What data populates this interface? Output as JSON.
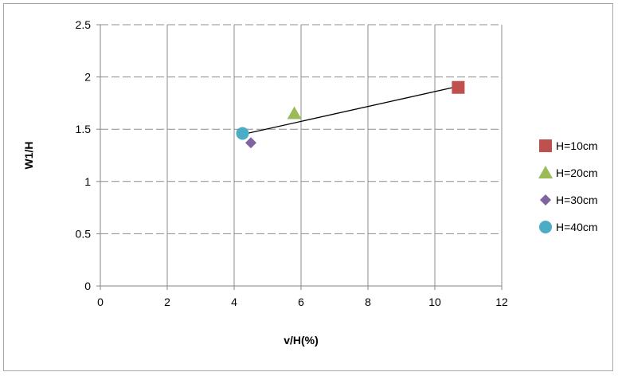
{
  "chart_data": {
    "type": "scatter",
    "title": "",
    "xlabel": "v/H(%)",
    "ylabel": "W1/H",
    "xlim": [
      0,
      12
    ],
    "ylim": [
      0,
      2.5
    ],
    "x_ticks": [
      "0",
      "2",
      "4",
      "6",
      "8",
      "10",
      "12"
    ],
    "y_ticks": [
      "0",
      "0.5",
      "1",
      "1.5",
      "2",
      "2.5"
    ],
    "x_tick_values": [
      0,
      2,
      4,
      6,
      8,
      10,
      12
    ],
    "y_tick_values": [
      0,
      0.5,
      1,
      1.5,
      2,
      2.5
    ],
    "grid": true,
    "legend_position": "right",
    "series": [
      {
        "name": "H=10cm",
        "marker": "square",
        "color": "#c0504d",
        "points": [
          {
            "x": 10.7,
            "y": 1.9
          }
        ]
      },
      {
        "name": "H=20cm",
        "marker": "triangle",
        "color": "#9bbb59",
        "points": [
          {
            "x": 5.8,
            "y": 1.65
          }
        ]
      },
      {
        "name": "H=30cm",
        "marker": "diamond",
        "color": "#8064a2",
        "points": [
          {
            "x": 4.5,
            "y": 1.37
          }
        ]
      },
      {
        "name": "H=40cm",
        "marker": "circle",
        "color": "#4bacc6",
        "points": [
          {
            "x": 4.25,
            "y": 1.46
          }
        ]
      }
    ],
    "trendline": {
      "color": "#000000",
      "x": [
        4.25,
        10.7
      ],
      "y": [
        1.45,
        1.91
      ]
    }
  }
}
